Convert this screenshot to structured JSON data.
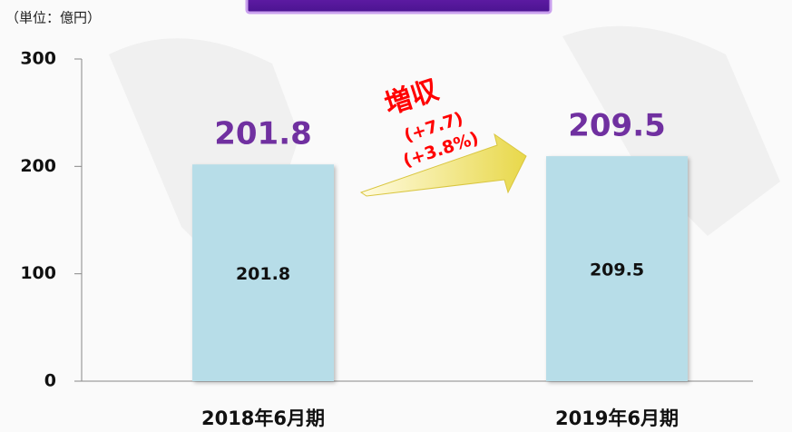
{
  "chart_data": {
    "type": "bar",
    "y_label": "（単位：億円）",
    "categories": [
      "2018年6月期",
      "2019年6月期"
    ],
    "values": [
      201.8,
      209.5
    ],
    "color": "#b7dde8",
    "label_color": "#7030a0",
    "ylim": [
      0,
      300
    ],
    "yticks": [
      0,
      100,
      200,
      300
    ],
    "annotations": [
      "増収",
      "(+7.7)",
      "(+3.8%)"
    ],
    "annotation_color": "#ff0000"
  }
}
